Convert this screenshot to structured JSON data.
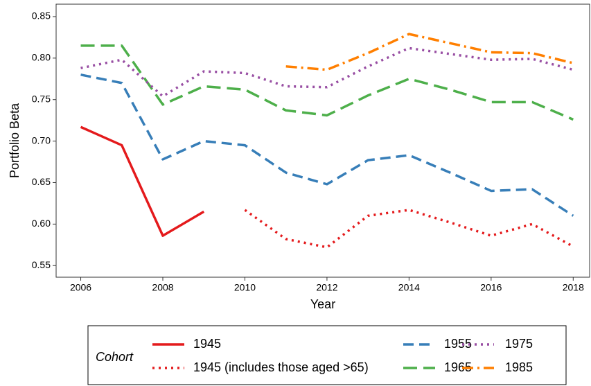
{
  "chart_data": {
    "type": "line",
    "x_label": "Year",
    "y_label": "Portfolio Beta",
    "x": [
      2006,
      2007,
      2008,
      2009,
      2010,
      2011,
      2012,
      2013,
      2014,
      2015,
      2016,
      2017,
      2018
    ],
    "xlim": [
      2005.4,
      2018.4
    ],
    "xticks": [
      2006,
      2008,
      2010,
      2012,
      2014,
      2016,
      2018
    ],
    "ylim": [
      0.536,
      0.865
    ],
    "yticks": [
      0.55,
      {
        "value": 0.6,
        "label": "0.60"
      },
      0.65,
      {
        "value": 0.7,
        "label": "0.70"
      },
      0.75,
      {
        "value": 0.8,
        "label": "0.80"
      },
      0.85
    ],
    "grid": false,
    "legend": {
      "title": "Cohort",
      "position": "bottom"
    },
    "series": [
      {
        "name": "1945",
        "color": "#e41a1c",
        "linestyle": "solid",
        "values": [
          0.717,
          0.695,
          0.586,
          0.615,
          null,
          null,
          null,
          null,
          null,
          null,
          null,
          null,
          null
        ]
      },
      {
        "name": "1945 (includes those aged >65)",
        "color": "#e41a1c",
        "linestyle": "dotted",
        "values": [
          null,
          null,
          null,
          null,
          0.617,
          0.582,
          0.572,
          0.61,
          0.617,
          0.602,
          0.586,
          0.6,
          0.573
        ]
      },
      {
        "name": "1955",
        "color": "#377eb8",
        "linestyle": "dashed",
        "values": [
          0.78,
          0.77,
          0.678,
          0.7,
          0.695,
          0.662,
          0.648,
          0.677,
          0.683,
          0.662,
          0.64,
          0.642,
          0.61
        ]
      },
      {
        "name": "1965",
        "color": "#4daf4a",
        "linestyle": "longdash",
        "values": [
          0.815,
          0.815,
          0.744,
          0.766,
          0.762,
          0.737,
          0.731,
          0.755,
          0.775,
          0.762,
          0.747,
          0.747,
          0.726
        ]
      },
      {
        "name": "1975",
        "color": "#984ea3",
        "linestyle": "dotted",
        "values": [
          0.788,
          0.798,
          0.754,
          0.784,
          0.782,
          0.766,
          0.765,
          0.79,
          0.812,
          0.805,
          0.798,
          0.799,
          0.786
        ]
      },
      {
        "name": "1985",
        "color": "#ff7f00",
        "linestyle": "dotdash",
        "values": [
          null,
          null,
          null,
          null,
          null,
          0.79,
          0.786,
          0.806,
          0.829,
          0.818,
          0.807,
          0.806,
          0.794
        ]
      }
    ]
  }
}
